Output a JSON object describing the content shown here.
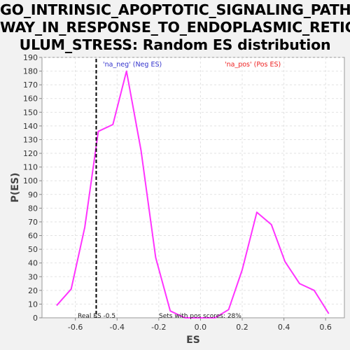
{
  "title_lines": [
    "GO_INTRINSIC_APOPTOTIC_SIGNALING_PATH",
    "WAY_IN_RESPONSE_TO_ENDOPLASMIC_RETIC",
    "ULUM_STRESS: Random ES distribution"
  ],
  "chart_data": {
    "type": "line",
    "title": "GO_INTRINSIC_APOPTOTIC_SIGNALING_PATHWAY_IN_RESPONSE_TO_ENDOPLASMIC_RETICULUM_STRESS: Random ES distribution",
    "xlabel": "ES",
    "ylabel": "P(ES)",
    "xlim": [
      -0.76,
      0.69
    ],
    "ylim": [
      0,
      190
    ],
    "x_ticks": [
      -0.6,
      -0.4,
      -0.2,
      0.0,
      0.2,
      0.4,
      0.6
    ],
    "x_tick_labels": [
      "-0.6",
      "-0.4",
      "-0.2",
      "0.0",
      "0.2",
      "0.4",
      "0.6"
    ],
    "y_ticks": [
      0,
      10,
      20,
      30,
      40,
      50,
      60,
      70,
      80,
      90,
      100,
      110,
      120,
      130,
      140,
      150,
      160,
      170,
      180,
      190
    ],
    "grid": true,
    "series": [
      {
        "color": "#ff33ff",
        "x": [
          -0.69,
          -0.62,
          -0.555,
          -0.49,
          -0.42,
          -0.355,
          -0.285,
          -0.215,
          -0.145,
          -0.075,
          0.0,
          0.07,
          0.135,
          0.2,
          0.27,
          0.34,
          0.405,
          0.475,
          0.545,
          0.615
        ],
        "y": [
          9,
          21,
          66,
          136,
          141,
          180,
          122,
          44,
          5,
          0,
          0,
          0,
          6,
          35,
          77,
          68,
          41,
          25,
          20,
          3
        ]
      }
    ],
    "real_es_line": {
      "x": -0.5,
      "style": "dashed",
      "color": "#000000"
    },
    "annotations": {
      "neg_label": "'na_neg' (Neg ES)",
      "neg_color": "#3333cc",
      "pos_label": "'na_pos' (Pos ES)",
      "pos_color": "#ee2222",
      "real_es": "Real ES -0.5",
      "pos_scores": "Sets with pos scores: 28%"
    }
  }
}
